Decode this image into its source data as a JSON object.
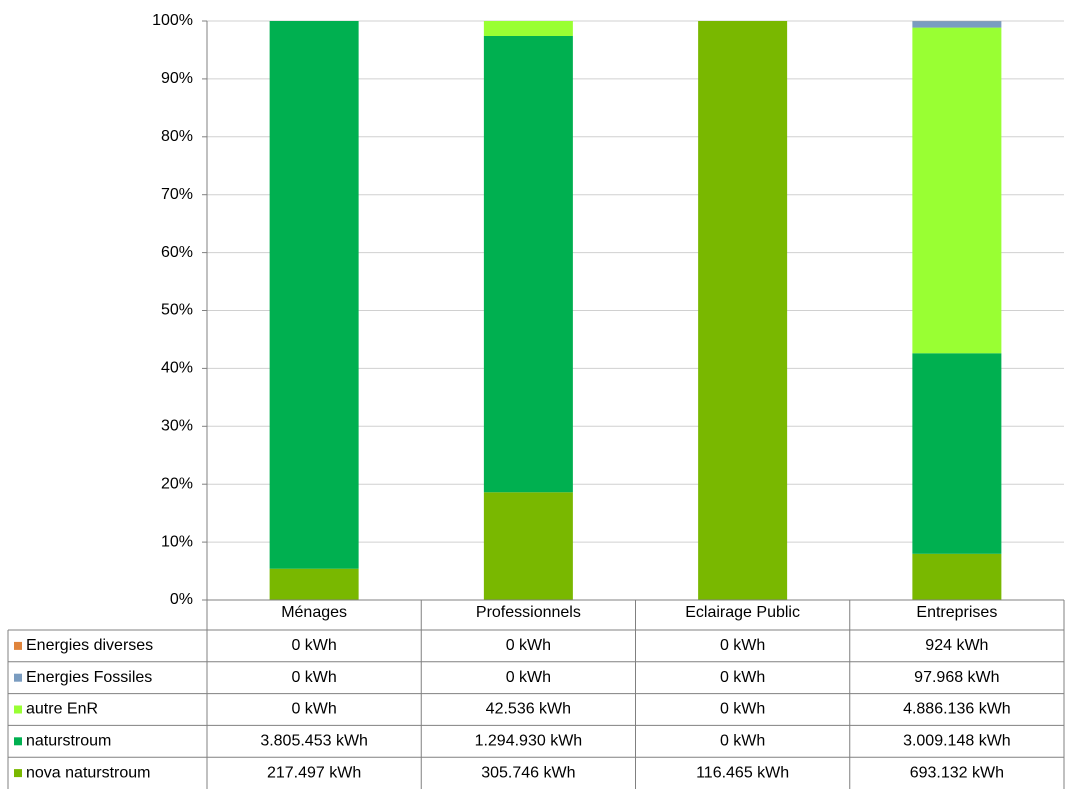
{
  "chart_data": {
    "type": "stacked_bar_100",
    "categories": [
      "Ménages",
      "Professionnels",
      "Eclairage Public",
      "Entreprises"
    ],
    "ylim": [
      0,
      100
    ],
    "yticks": [
      {
        "value": 0,
        "label": "0%"
      },
      {
        "value": 10,
        "label": "10%"
      },
      {
        "value": 20,
        "label": "20%"
      },
      {
        "value": 30,
        "label": "30%"
      },
      {
        "value": 40,
        "label": "40%"
      },
      {
        "value": 50,
        "label": "50%"
      },
      {
        "value": 60,
        "label": "60%"
      },
      {
        "value": 70,
        "label": "70%"
      },
      {
        "value": 80,
        "label": "80%"
      },
      {
        "value": 90,
        "label": "90%"
      },
      {
        "value": 100,
        "label": "100%"
      }
    ],
    "grid": true,
    "series": [
      {
        "name": "Energies diverses",
        "color": "#e0843c",
        "values": [
          0,
          0,
          0,
          924
        ],
        "value_labels": [
          "0 kWh",
          "0 kWh",
          "0 kWh",
          "924 kWh"
        ]
      },
      {
        "name": "Energies Fossiles",
        "color": "#7a9cc0",
        "values": [
          0,
          0,
          0,
          97968
        ],
        "value_labels": [
          "0 kWh",
          "0 kWh",
          "0 kWh",
          "97.968 kWh"
        ]
      },
      {
        "name": "autre EnR",
        "color": "#99ff33",
        "values": [
          0,
          42536,
          0,
          4886136
        ],
        "value_labels": [
          "0 kWh",
          "42.536 kWh",
          "0 kWh",
          "4.886.136 kWh"
        ]
      },
      {
        "name": "naturstroum",
        "color": "#00b050",
        "values": [
          3805453,
          1294930,
          0,
          3009148
        ],
        "value_labels": [
          "3.805.453 kWh",
          "1.294.930 kWh",
          "0 kWh",
          "3.009.148 kWh"
        ]
      },
      {
        "name": "nova naturstroum",
        "color": "#79b800",
        "values": [
          217497,
          305746,
          116465,
          693132
        ],
        "value_labels": [
          "217.497 kWh",
          "305.746 kWh",
          "116.465 kWh",
          "693.132 kWh"
        ]
      }
    ]
  }
}
